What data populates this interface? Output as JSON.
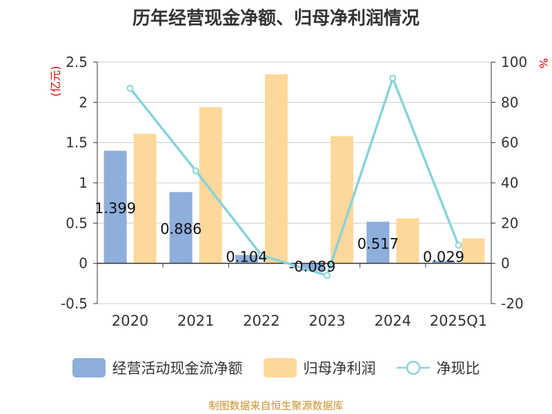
{
  "chart_data": {
    "type": "bar",
    "title": "历年经营现金净额、归母净利润情况",
    "categories": [
      "2020",
      "2021",
      "2022",
      "2023",
      "2024",
      "2025Q1"
    ],
    "y_left": {
      "unit_label": "(亿元)",
      "ylim": [
        -0.5,
        2.5
      ],
      "ticks": [
        "2.5",
        "2",
        "1.5",
        "1",
        "0.5",
        "0",
        "-0.5"
      ]
    },
    "y_right": {
      "unit_label": "%",
      "ylim": [
        -20,
        100
      ],
      "ticks": [
        "100",
        "80",
        "60",
        "40",
        "20",
        "0",
        "-20"
      ]
    },
    "series": [
      {
        "name": "经营活动现金流净额",
        "kind": "bar",
        "axis": "left",
        "color": "#8eaedb",
        "values": [
          1.399,
          0.886,
          0.104,
          -0.089,
          0.517,
          0.029
        ],
        "labels": [
          "1.399",
          "0.886",
          "0.104",
          "-0.089",
          "0.517",
          "0.029"
        ]
      },
      {
        "name": "归母净利润",
        "kind": "bar",
        "axis": "left",
        "color": "#fed89a",
        "values": [
          1.61,
          1.94,
          2.35,
          1.58,
          0.56,
          0.31
        ]
      },
      {
        "name": "净现比",
        "kind": "line",
        "axis": "right",
        "color": "#89d3d9",
        "values": [
          87,
          46,
          4,
          -6,
          92,
          9
        ]
      }
    ],
    "grid": true,
    "legend_position": "bottom"
  },
  "source": "制图数据来自恒生聚源数据库"
}
